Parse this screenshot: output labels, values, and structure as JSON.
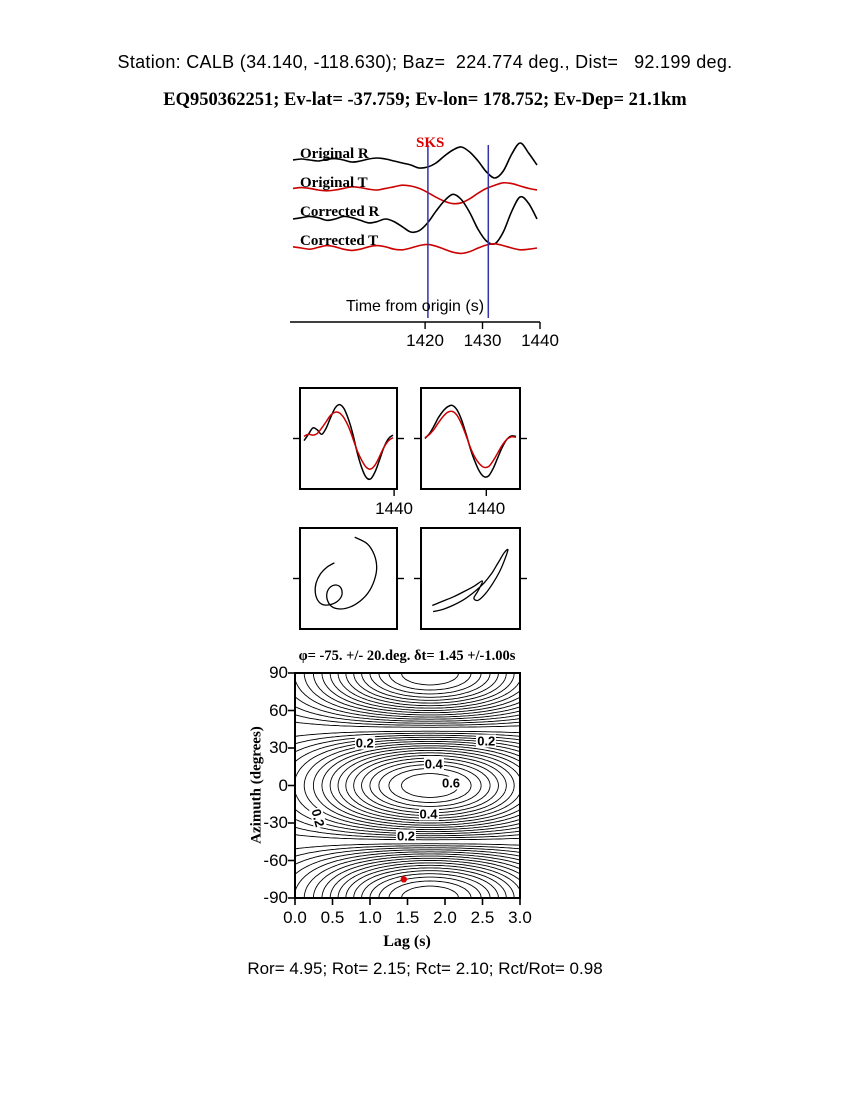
{
  "header": {
    "line1": "Station: CALB (34.140, -118.630); Baz=  224.774 deg., Dist=   92.199 deg.",
    "line2": "EQ950362251; Ev-lat= -37.759; Ev-lon= 178.752; Ev-Dep= 21.1km"
  },
  "caption": "Ror= 4.95; Rot= 2.15; Rct= 2.10; Rct/Rot= 0.98",
  "chart_data": {
    "type": "composite",
    "meta": {
      "station": "CALB",
      "station_lat": 34.14,
      "station_lon": -118.63,
      "back_azimuth_deg": 224.774,
      "distance_deg": 92.199,
      "event_id": "EQ950362251",
      "event_lat": -37.759,
      "event_lon": 178.752,
      "event_depth_km": 21.1,
      "phase": "SKS"
    },
    "statistics": {
      "Ror": 4.95,
      "Rot": 2.15,
      "Rct": 2.1,
      "Rct_over_Rot": 0.98
    },
    "waveforms": {
      "type": "line",
      "phase_label": "SKS",
      "phase_label_color": "#dd0000",
      "x_axis_label": "Time from origin (s)",
      "x_range": [
        1396.5,
        1440
      ],
      "x_ticks": [
        1420,
        1430,
        1440
      ],
      "x_tick_labels": [
        "1420",
        "1430",
        "1440"
      ],
      "window": [
        1420.5,
        1431
      ],
      "window_color": "#3333aa",
      "traces": [
        {
          "label": "Original R",
          "color": "#000000",
          "values": [
            0.05,
            0.1,
            0.05,
            0,
            0.08,
            0.12,
            0.05,
            -0.05,
            0,
            0.1,
            0.15,
            0.1,
            0,
            -0.1,
            -0.2,
            -0.35,
            -0.3,
            -0.1,
            0.25,
            0.55,
            0.7,
            0.45,
            0,
            -0.55,
            -0.85,
            -0.5,
            0.35,
            0.9,
            0.4,
            -0.2
          ]
        },
        {
          "label": "Original T",
          "color": "#cc0000",
          "values": [
            0.1,
            0.15,
            0.1,
            0,
            -0.05,
            0,
            0.1,
            0.2,
            0.15,
            0.05,
            0,
            0.1,
            0.2,
            0.3,
            0.25,
            0.1,
            -0.15,
            -0.45,
            -0.7,
            -0.85,
            -0.8,
            -0.55,
            -0.2,
            0.1,
            0.3,
            0.45,
            0.4,
            0.25,
            0.1,
            0
          ]
        },
        {
          "label": "Corrected R",
          "color": "#000000",
          "values": [
            0,
            0.05,
            0.1,
            0.05,
            -0.05,
            0,
            0.1,
            0.05,
            -0.05,
            -0.15,
            -0.1,
            0,
            -0.1,
            -0.3,
            -0.5,
            -0.45,
            -0.15,
            0.3,
            0.7,
            0.95,
            0.75,
            0.25,
            -0.4,
            -0.85,
            -0.95,
            -0.5,
            0.3,
            0.85,
            0.6,
            0
          ]
        },
        {
          "label": "Corrected T",
          "color": "#cc0000",
          "values": [
            0.1,
            0,
            -0.1,
            0.05,
            0.2,
            0.1,
            -0.1,
            -0.2,
            -0.1,
            0.1,
            0.2,
            0.1,
            -0.1,
            -0.15,
            0,
            0.2,
            0.3,
            0.15,
            -0.1,
            -0.35,
            -0.45,
            -0.3,
            0,
            0.25,
            0.35,
            0.2,
            0,
            -0.15,
            -0.1,
            0
          ]
        }
      ]
    },
    "window_boxes": [
      {
        "tick_label": "1440",
        "tick_frac": 0.97,
        "series": [
          {
            "name": "radial",
            "color": "#000000",
            "values": [
              -0.05,
              0.1,
              0.25,
              0.2,
              0.1,
              0.25,
              0.5,
              0.72,
              0.8,
              0.7,
              0.45,
              0.1,
              -0.35,
              -0.7,
              -0.92,
              -0.95,
              -0.78,
              -0.5,
              -0.2,
              0,
              0.08
            ]
          },
          {
            "name": "transverse",
            "color": "#cc0000",
            "values": [
              0.05,
              0.1,
              0.08,
              0.12,
              0.25,
              0.4,
              0.55,
              0.62,
              0.6,
              0.48,
              0.28,
              0,
              -0.3,
              -0.52,
              -0.68,
              -0.72,
              -0.62,
              -0.42,
              -0.2,
              -0.05,
              0.02
            ]
          }
        ]
      },
      {
        "tick_label": "1440",
        "tick_frac": 0.66,
        "series": [
          {
            "name": "radial",
            "color": "#000000",
            "values": [
              0,
              0.12,
              0.3,
              0.5,
              0.65,
              0.75,
              0.78,
              0.68,
              0.45,
              0.12,
              -0.25,
              -0.55,
              -0.78,
              -0.9,
              -0.88,
              -0.7,
              -0.45,
              -0.2,
              -0.02,
              0.06,
              0.05
            ]
          },
          {
            "name": "transverse",
            "color": "#cc0000",
            "values": [
              0.02,
              0.1,
              0.22,
              0.38,
              0.52,
              0.62,
              0.64,
              0.55,
              0.35,
              0.08,
              -0.22,
              -0.45,
              -0.6,
              -0.68,
              -0.66,
              -0.52,
              -0.34,
              -0.15,
              -0.02,
              0.04,
              0.03
            ]
          }
        ]
      }
    ],
    "particle_boxes": [
      {
        "name": "original-particle-motion",
        "color": "#000000",
        "points": [
          [
            0.15,
            0.95
          ],
          [
            0.45,
            0.8
          ],
          [
            0.62,
            0.55
          ],
          [
            0.68,
            0.25
          ],
          [
            0.62,
            -0.05
          ],
          [
            0.48,
            -0.32
          ],
          [
            0.28,
            -0.52
          ],
          [
            0.05,
            -0.65
          ],
          [
            -0.18,
            -0.7
          ],
          [
            -0.38,
            -0.66
          ],
          [
            -0.5,
            -0.52
          ],
          [
            -0.52,
            -0.34
          ],
          [
            -0.44,
            -0.2
          ],
          [
            -0.3,
            -0.15
          ],
          [
            -0.18,
            -0.22
          ],
          [
            -0.16,
            -0.38
          ],
          [
            -0.26,
            -0.52
          ],
          [
            -0.44,
            -0.6
          ],
          [
            -0.62,
            -0.6
          ],
          [
            -0.74,
            -0.5
          ],
          [
            -0.8,
            -0.32
          ],
          [
            -0.78,
            -0.1
          ],
          [
            -0.68,
            0.1
          ],
          [
            -0.52,
            0.26
          ],
          [
            -0.34,
            0.36
          ]
        ]
      },
      {
        "name": "corrected-particle-motion",
        "color": "#000000",
        "points": [
          [
            -0.9,
            -0.62
          ],
          [
            -0.65,
            -0.52
          ],
          [
            -0.4,
            -0.42
          ],
          [
            -0.15,
            -0.3
          ],
          [
            0.08,
            -0.18
          ],
          [
            0.28,
            -0.06
          ],
          [
            0.18,
            -0.28
          ],
          [
            0.08,
            -0.45
          ],
          [
            0.18,
            -0.5
          ],
          [
            0.35,
            -0.35
          ],
          [
            0.52,
            -0.12
          ],
          [
            0.68,
            0.15
          ],
          [
            0.8,
            0.42
          ],
          [
            0.88,
            0.66
          ],
          [
            0.8,
            0.6
          ],
          [
            0.66,
            0.38
          ],
          [
            0.5,
            0.12
          ],
          [
            0.32,
            -0.1
          ],
          [
            0.1,
            -0.3
          ],
          [
            -0.15,
            -0.48
          ],
          [
            -0.42,
            -0.62
          ],
          [
            -0.68,
            -0.72
          ],
          [
            -0.88,
            -0.76
          ]
        ]
      }
    ],
    "splitting_map": {
      "type": "contour",
      "title": "φ= -75. +/- 20.deg. δt= 1.45 +/-1.00s",
      "phi_deg": -75,
      "phi_err_deg": 20,
      "dt_s": 1.45,
      "dt_err_s": 1.0,
      "xlabel": "Lag (s)",
      "ylabel": "Azimuth (degrees)",
      "x_range": [
        0,
        3
      ],
      "y_range": [
        -90,
        90
      ],
      "x_ticks": [
        0,
        0.5,
        1,
        1.5,
        2,
        2.5,
        3
      ],
      "x_tick_labels": [
        "0.0",
        "0.5",
        "1.0",
        "1.5",
        "2.0",
        "2.5",
        "3.0"
      ],
      "y_ticks": [
        90,
        60,
        30,
        0,
        -30,
        -60,
        -90
      ],
      "y_tick_labels": [
        "90",
        "60",
        "30",
        "0",
        "-30",
        "-60",
        "-90"
      ],
      "surface": {
        "amplitude": 0.9,
        "center_lag": 1.8,
        "lag_width": 1.6,
        "azimuth_period_deg": 180
      },
      "contour_interval": 0.05,
      "contour_max": 0.85,
      "contour_labels": [
        {
          "text": "0.2",
          "lag": 0.93,
          "az": 34
        },
        {
          "text": "0.2",
          "lag": 2.55,
          "az": 36
        },
        {
          "text": "0.4",
          "lag": 1.85,
          "az": 17
        },
        {
          "text": "0.6",
          "lag": 2.08,
          "az": 2
        },
        {
          "text": "0.4",
          "lag": 1.78,
          "az": -23
        },
        {
          "text": "0.2",
          "lag": 1.48,
          "az": -40
        },
        {
          "text": "0.2",
          "lag": 0.3,
          "az": -26,
          "rot": 75
        }
      ],
      "solution": {
        "lag": 1.45,
        "azimuth": -75,
        "marker_color": "#dd0000"
      }
    }
  }
}
